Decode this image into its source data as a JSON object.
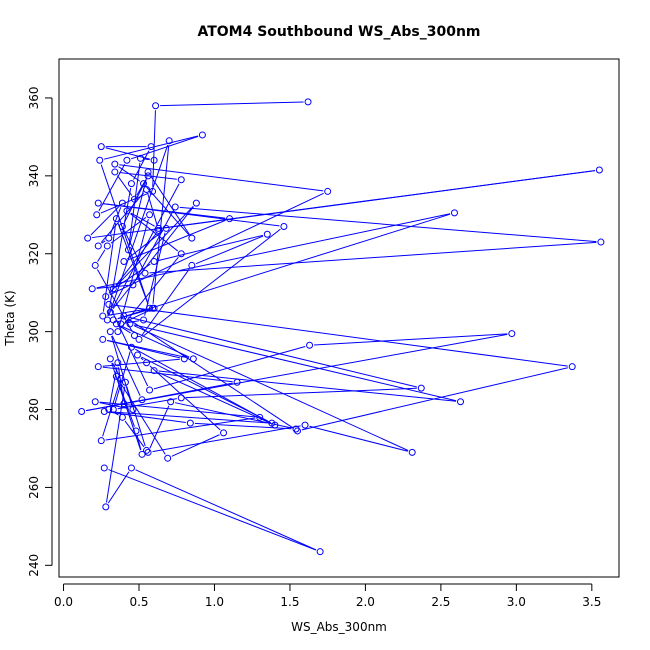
{
  "chart_data": {
    "type": "line",
    "title": "ATOM4 Southbound WS_Abs_300nm",
    "xlabel": "WS_Abs_300nm",
    "ylabel": "Theta (K)",
    "xlim": [
      -0.03,
      3.68
    ],
    "ylim": [
      237,
      370
    ],
    "xticks": [
      0.0,
      0.5,
      1.0,
      1.5,
      2.0,
      2.5,
      3.0,
      3.5
    ],
    "xtick_labels": [
      "0.0",
      "0.5",
      "1.0",
      "1.5",
      "2.0",
      "2.5",
      "3.0",
      "3.5"
    ],
    "yticks": [
      240,
      260,
      280,
      300,
      320,
      340,
      360
    ],
    "ytick_labels": [
      "240",
      "260",
      "280",
      "300",
      "320",
      "340",
      "360"
    ],
    "grid": false,
    "series": [
      {
        "color": "#0000ff",
        "x": [
          0.27,
          1.7,
          0.45,
          0.28,
          0.41,
          0.55,
          0.39,
          0.3,
          0.36,
          0.4,
          0.52,
          0.31,
          0.46,
          0.21,
          1.3,
          0.25,
          0.38,
          0.31,
          0.52,
          0.48,
          0.35,
          0.69,
          1.06,
          0.55,
          0.49,
          1.38,
          0.27,
          0.84,
          1.54,
          0.71,
          0.56,
          1.6,
          2.31,
          0.44,
          2.63,
          0.6,
          1.4,
          0.45,
          0.33,
          0.78,
          2.37,
          0.4,
          1.55,
          3.37,
          0.3,
          0.57,
          1.63,
          2.97,
          0.12,
          1.15,
          0.23,
          0.8,
          0.26,
          0.86,
          0.35,
          0.47,
          0.21,
          0.29,
          0.57,
          0.36,
          0.78,
          0.42,
          0.63,
          3.55,
          0.16,
          0.39,
          0.3,
          0.23,
          0.55,
          0.63,
          0.33,
          0.6,
          1.35,
          0.85,
          0.5,
          1.46,
          0.23,
          1.1,
          0.4,
          0.68,
          0.53,
          0.38,
          0.6,
          0.33,
          2.59,
          0.19,
          0.46,
          0.74,
          3.56,
          0.54,
          0.39,
          0.56,
          0.47,
          0.34,
          0.78,
          0.31,
          0.88,
          0.28,
          1.75,
          0.34,
          0.53,
          0.85,
          0.56,
          0.43,
          0.51,
          0.6,
          0.25,
          0.58,
          0.45,
          0.29,
          0.7,
          0.59,
          0.26,
          0.35,
          0.57,
          0.24,
          0.92,
          0.42,
          0.22,
          0.59,
          0.61,
          1.62
        ],
        "y": [
          265,
          243.5,
          265,
          255,
          287,
          269.5,
          278,
          280,
          292,
          281.5,
          282.5,
          300,
          280,
          282,
          278,
          272,
          288,
          293,
          268.5,
          274.5,
          288.5,
          267.5,
          274,
          292,
          294,
          276.5,
          279.5,
          276.5,
          275,
          282,
          269,
          276,
          269,
          302,
          282,
          290,
          276,
          296,
          280,
          283,
          285.5,
          304,
          274.5,
          291,
          307,
          285,
          296.5,
          299.5,
          279.5,
          287,
          291,
          293,
          298,
          293,
          302,
          299,
          317,
          322,
          330,
          300,
          320,
          331,
          326.5,
          341.5,
          324,
          333,
          324,
          322,
          336.5,
          326,
          311,
          318,
          325,
          317,
          298,
          327,
          333,
          329,
          318,
          326.5,
          303,
          302,
          306,
          303,
          330.5,
          311,
          312,
          332,
          323,
          315,
          327,
          340,
          334,
          341,
          339,
          305,
          333,
          309,
          336,
          343,
          338,
          324,
          341,
          321,
          344.5,
          344,
          347.5,
          347.5,
          338,
          303,
          349,
          306,
          304,
          329,
          306,
          344,
          350.5,
          344,
          330,
          336,
          358,
          359
        ]
      }
    ]
  }
}
